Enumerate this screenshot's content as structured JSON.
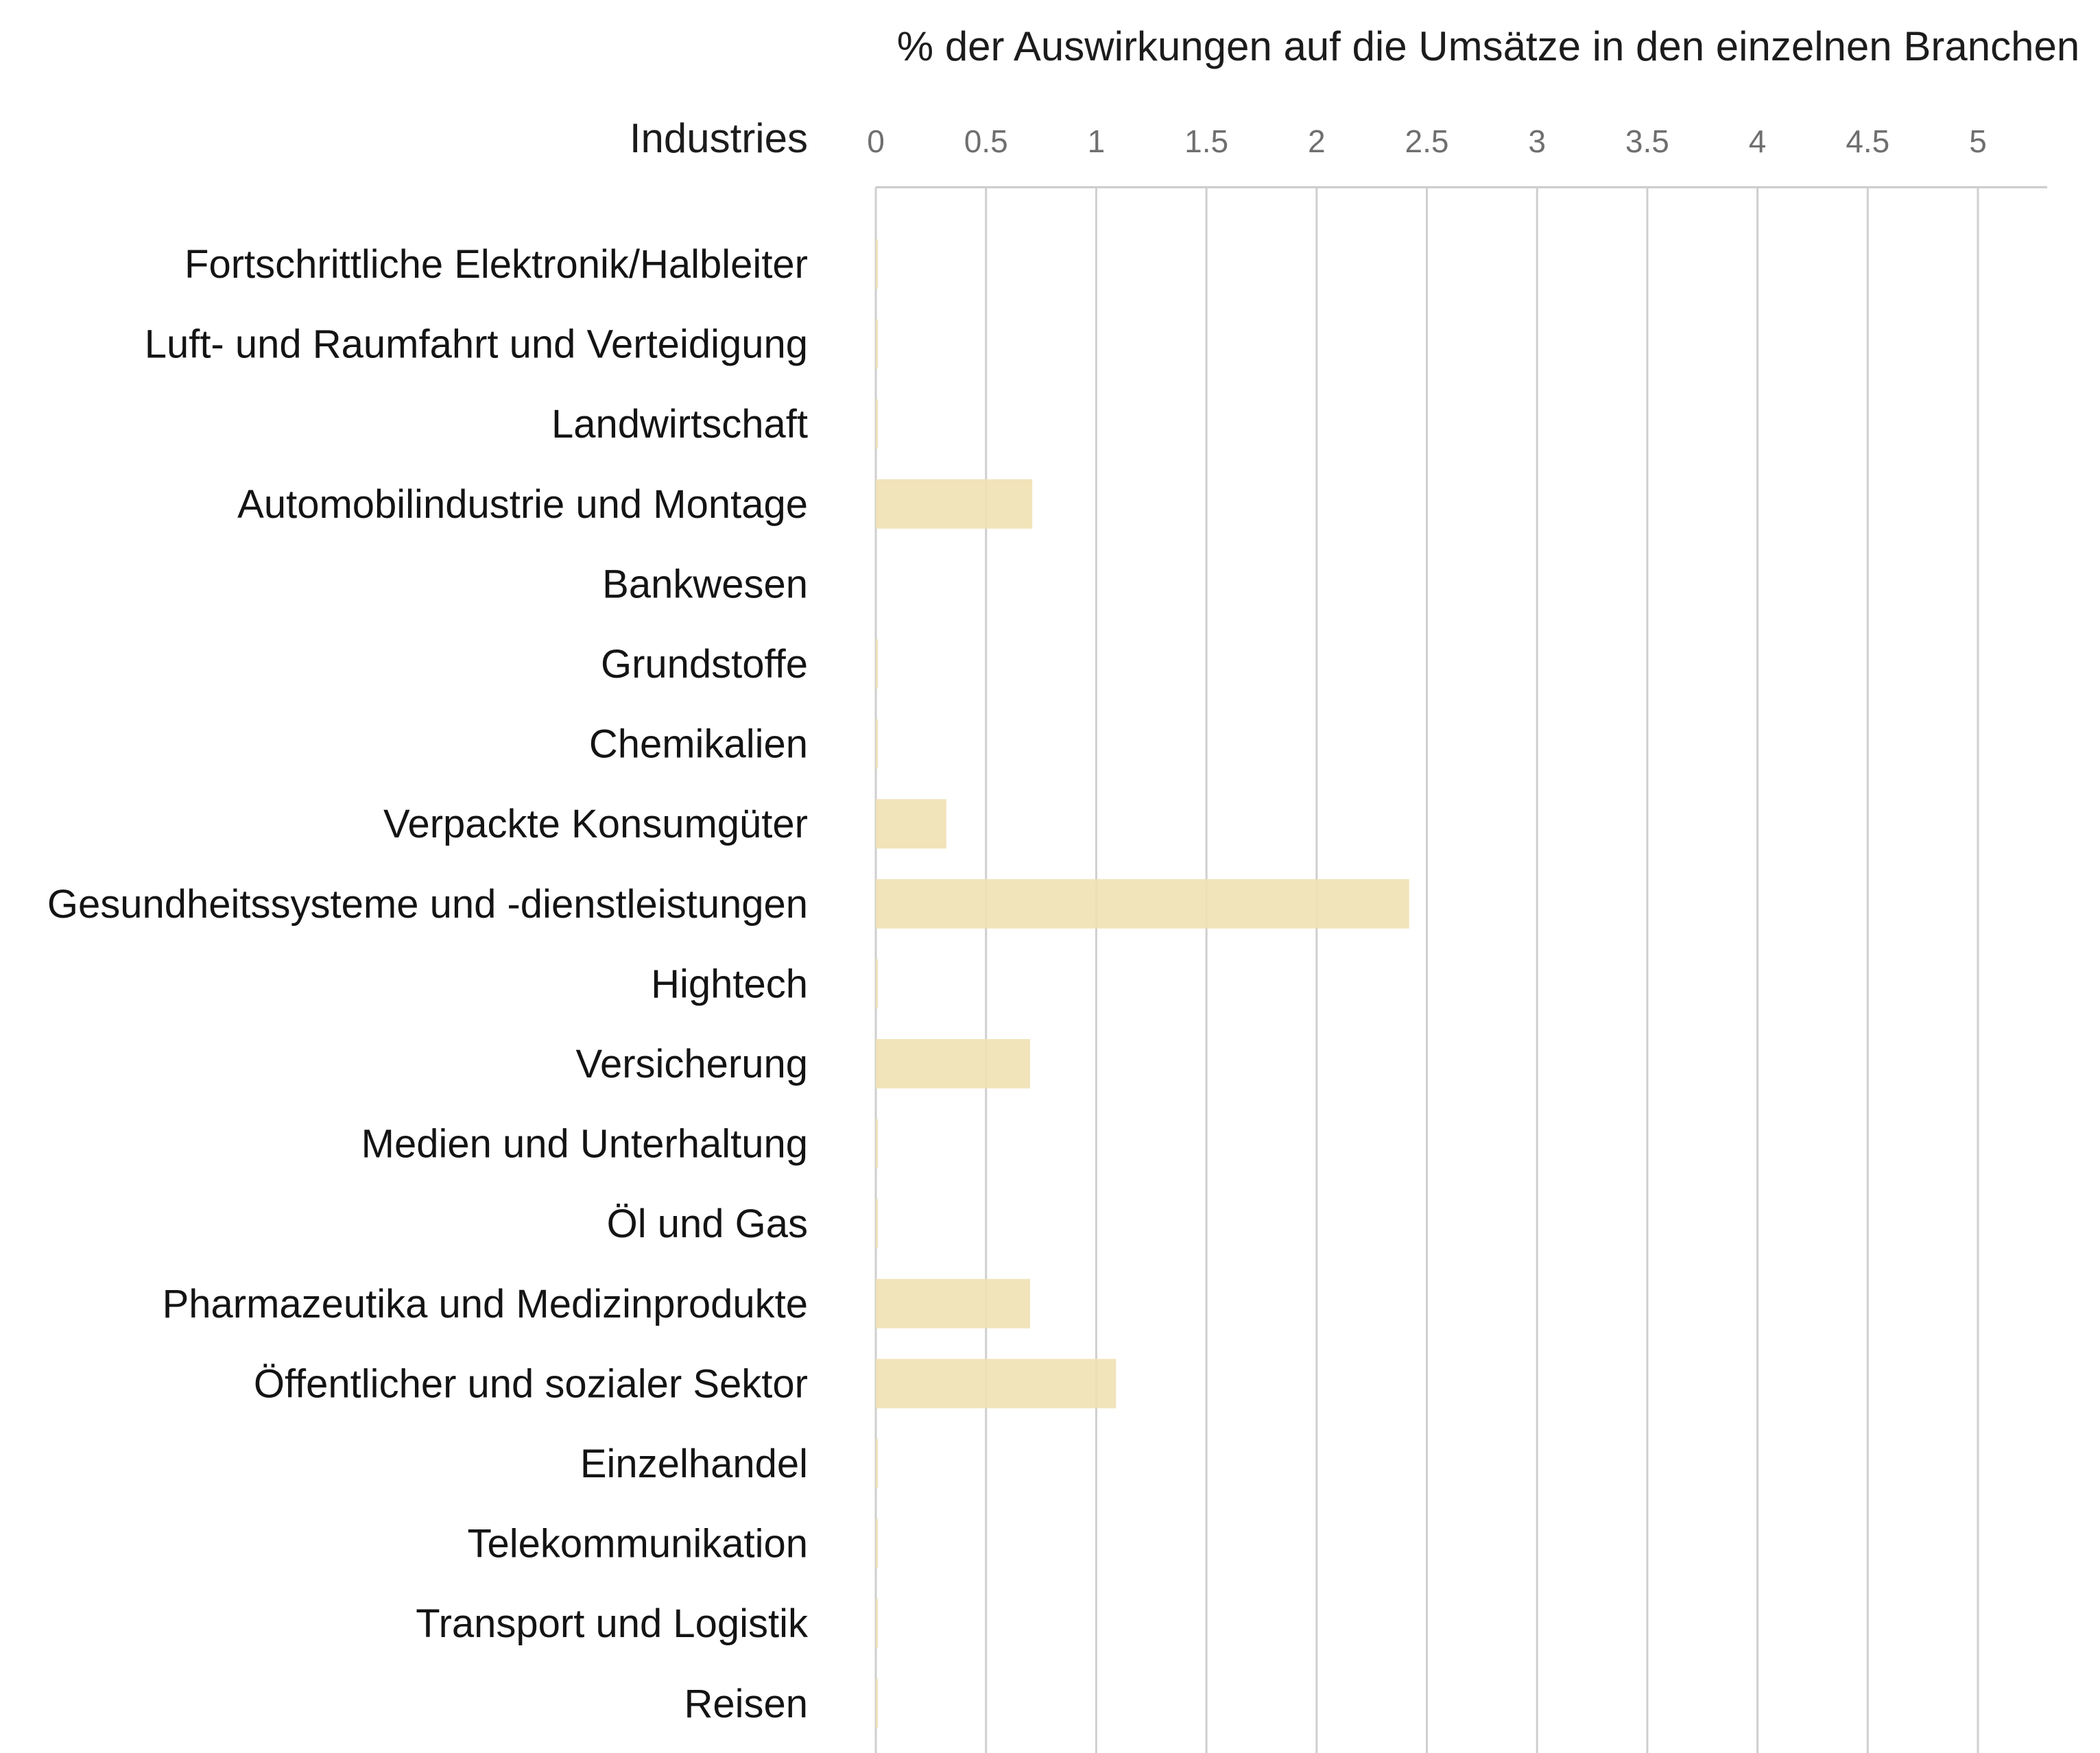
{
  "chart_data": {
    "type": "bar",
    "orientation": "horizontal",
    "title": "% der Auswirkungen auf die Umsätze in den einzelnen Branchen",
    "category_axis_label": "Industries",
    "xlim": [
      0,
      5.3
    ],
    "ticks": [
      "0",
      "0.5",
      "1",
      "1.5",
      "2",
      "2.5",
      "3",
      "3.5",
      "4",
      "4.5",
      "5"
    ],
    "tick_values": [
      0,
      0.5,
      1,
      1.5,
      2,
      2.5,
      3,
      3.5,
      4,
      4.5,
      5
    ],
    "grid": true,
    "bar_color": "#f0e1b3",
    "categories": [
      "Fortschrittliche Elektronik/Halbleiter",
      "Luft- und Raumfahrt und Verteidigung",
      "Landwirtschaft",
      "Automobilindustrie und Montage",
      "Bankwesen",
      "Grundstoffe",
      "Chemikalien",
      "Verpackte Konsumgüter",
      "Gesundheitssysteme und -dienstleistungen",
      "Hightech",
      "Versicherung",
      "Medien und Unterhaltung",
      "Öl und Gas",
      "Pharmazeutika und Medizinprodukte",
      "Öffentlicher und sozialer Sektor",
      "Einzelhandel",
      "Telekommunikation",
      "Transport und Logistik",
      "Reisen"
    ],
    "values": [
      0.01,
      0.01,
      0.01,
      0.71,
      0,
      0.01,
      0.01,
      0.32,
      2.42,
      0.01,
      0.7,
      0.01,
      0.01,
      0.7,
      1.09,
      0.01,
      0.01,
      0.01,
      0.01
    ]
  }
}
